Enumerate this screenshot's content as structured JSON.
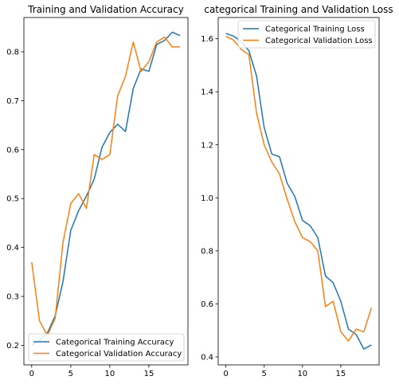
{
  "chart_data": [
    {
      "type": "line",
      "title": "Training and Validation Accuracy",
      "xlabel": "",
      "ylabel": "",
      "xlim": [
        -1,
        20
      ],
      "ylim": [
        0.16,
        0.87
      ],
      "xticks": [
        0,
        5,
        10,
        15
      ],
      "yticks": [
        0.2,
        0.3,
        0.4,
        0.5,
        0.6,
        0.7,
        0.8
      ],
      "grid": false,
      "legend": "lower-right",
      "x": [
        0,
        1,
        2,
        3,
        4,
        5,
        6,
        7,
        8,
        9,
        10,
        11,
        12,
        13,
        14,
        15,
        16,
        17,
        18,
        19
      ],
      "series": [
        {
          "name": "Categorical Training Accuracy",
          "color": "#1f77b4",
          "values": [
            0.2,
            0.21,
            0.225,
            0.26,
            0.33,
            0.435,
            0.475,
            0.505,
            0.54,
            0.605,
            0.635,
            0.652,
            0.637,
            0.725,
            0.765,
            0.76,
            0.815,
            0.823,
            0.84,
            0.833
          ]
        },
        {
          "name": "Categorical Validation Accuracy",
          "color": "#ff7f0e",
          "values": [
            0.37,
            0.25,
            0.22,
            0.255,
            0.41,
            0.49,
            0.51,
            0.48,
            0.59,
            0.58,
            0.59,
            0.71,
            0.75,
            0.82,
            0.76,
            0.78,
            0.82,
            0.83,
            0.81,
            0.81
          ]
        }
      ]
    },
    {
      "type": "line",
      "title": "categorical Training and Validation Loss",
      "xlabel": "",
      "ylabel": "",
      "xlim": [
        -1,
        20
      ],
      "ylim": [
        0.37,
        1.68
      ],
      "xticks": [
        0,
        5,
        10,
        15
      ],
      "yticks": [
        0.4,
        0.6,
        0.8,
        1.0,
        1.2,
        1.4,
        1.6
      ],
      "grid": false,
      "legend": "top-right",
      "x": [
        0,
        1,
        2,
        3,
        4,
        5,
        6,
        7,
        8,
        9,
        10,
        11,
        12,
        13,
        14,
        15,
        16,
        17,
        18,
        19
      ],
      "series": [
        {
          "name": "Categorical Training Loss",
          "color": "#1f77b4",
          "values": [
            1.62,
            1.61,
            1.59,
            1.555,
            1.46,
            1.265,
            1.165,
            1.155,
            1.055,
            1.005,
            0.915,
            0.895,
            0.85,
            0.705,
            0.68,
            0.61,
            0.505,
            0.485,
            0.43,
            0.445
          ]
        },
        {
          "name": "Categorical Validation Loss",
          "color": "#ff7f0e",
          "values": [
            1.61,
            1.595,
            1.56,
            1.54,
            1.32,
            1.2,
            1.135,
            1.09,
            0.995,
            0.91,
            0.85,
            0.835,
            0.8,
            0.59,
            0.61,
            0.495,
            0.46,
            0.505,
            0.495,
            0.585
          ]
        }
      ]
    }
  ]
}
